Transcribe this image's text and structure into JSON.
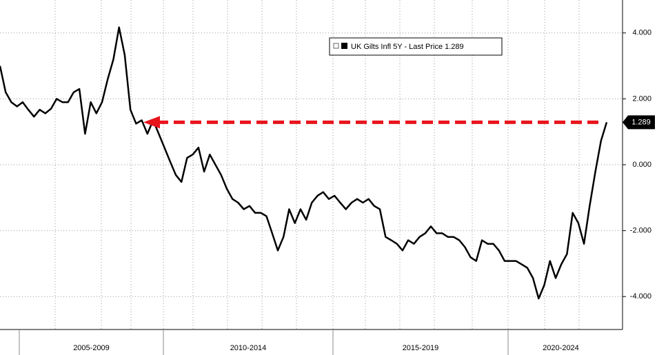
{
  "chart_data": {
    "type": "line",
    "periods": [
      "2005-2009",
      "2010-2014",
      "2015-2019",
      "2020-2024"
    ],
    "series": [
      {
        "name": "UK Gilts Infl 5Y - Last Price 1.289",
        "color": "#000000",
        "values": [
          3.0,
          2.2,
          1.9,
          1.77,
          1.9,
          1.67,
          1.46,
          1.67,
          1.56,
          1.7,
          2.0,
          1.9,
          1.9,
          2.2,
          2.3,
          0.94,
          1.9,
          1.56,
          1.9,
          2.6,
          3.2,
          4.17,
          3.33,
          1.67,
          1.25,
          1.35,
          0.94,
          1.35,
          0.94,
          0.52,
          0.1,
          -0.31,
          -0.52,
          0.21,
          0.31,
          0.52,
          -0.21,
          0.31,
          0,
          -0.31,
          -0.73,
          -1.04,
          -1.15,
          -1.35,
          -1.25,
          -1.46,
          -1.46,
          -1.56,
          -2.08,
          -2.6,
          -2.19,
          -1.35,
          -1.77,
          -1.35,
          -1.67,
          -1.15,
          -0.94,
          -0.83,
          -1.04,
          -0.94,
          -1.15,
          -1.35,
          -1.15,
          -1.04,
          -1.15,
          -1.04,
          -1.25,
          -1.35,
          -2.19,
          -2.29,
          -2.4,
          -2.6,
          -2.29,
          -2.4,
          -2.19,
          -2.08,
          -1.87,
          -2.08,
          -2.08,
          -2.19,
          -2.19,
          -2.29,
          -2.5,
          -2.81,
          -2.92,
          -2.29,
          -2.4,
          -2.4,
          -2.6,
          -2.92,
          -2.92,
          -2.92,
          -3.02,
          -3.13,
          -3.44,
          -4.06,
          -3.65,
          -2.92,
          -3.44,
          -3.02,
          -2.71,
          -1.46,
          -1.77,
          -2.4,
          -1.25,
          -0.21,
          0.73,
          1.289
        ]
      }
    ],
    "ylim": [
      -5,
      5
    ],
    "yticks": [
      {
        "value": 4,
        "label": "4.000"
      },
      {
        "value": 2,
        "label": "2.000"
      },
      {
        "value": 0,
        "label": "0.000"
      },
      {
        "value": -2,
        "label": "-2.000"
      },
      {
        "value": -4,
        "label": "-4.000"
      }
    ],
    "grid": true
  }
}
